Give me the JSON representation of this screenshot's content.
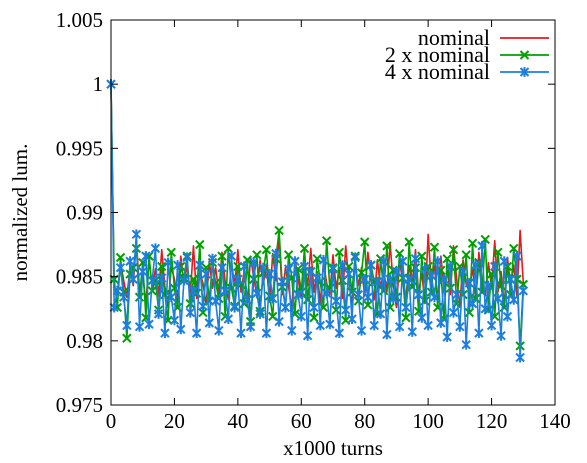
{
  "chart_data": {
    "type": "line",
    "title": "",
    "xlabel": "x1000 turns",
    "ylabel": "normalized lum.",
    "xlim": [
      0,
      140
    ],
    "ylim": [
      0.975,
      1.005
    ],
    "x_ticks": [
      "0",
      "20",
      "40",
      "60",
      "80",
      "100",
      "120",
      "140"
    ],
    "y_ticks": [
      "0.975",
      "0.98",
      "0.985",
      "0.99",
      "0.995",
      "1",
      "1.005"
    ],
    "x_tick_values": [
      0,
      20,
      40,
      60,
      80,
      100,
      120,
      140
    ],
    "y_tick_values": [
      0.975,
      0.98,
      0.985,
      0.99,
      0.995,
      1.0,
      1.005
    ],
    "grid": false,
    "legend_position": "top-right",
    "x": [
      0,
      1,
      2,
      3,
      4,
      5,
      6,
      7,
      8,
      9,
      10,
      11,
      12,
      13,
      14,
      15,
      16,
      17,
      18,
      19,
      20,
      21,
      22,
      23,
      24,
      25,
      26,
      27,
      28,
      29,
      30,
      31,
      32,
      33,
      34,
      35,
      36,
      37,
      38,
      39,
      40,
      41,
      42,
      43,
      44,
      45,
      46,
      47,
      48,
      49,
      50,
      51,
      52,
      53,
      54,
      55,
      56,
      57,
      58,
      59,
      60,
      61,
      62,
      63,
      64,
      65,
      66,
      67,
      68,
      69,
      70,
      71,
      72,
      73,
      74,
      75,
      76,
      77,
      78,
      79,
      80,
      81,
      82,
      83,
      84,
      85,
      86,
      87,
      88,
      89,
      90,
      91,
      92,
      93,
      94,
      95,
      96,
      97,
      98,
      99,
      100,
      101,
      102,
      103,
      104,
      105,
      106,
      107,
      108,
      109,
      110,
      111,
      112,
      113,
      114,
      115,
      116,
      117,
      118,
      119,
      120,
      121,
      122,
      123,
      124,
      125,
      126,
      127,
      128,
      129,
      130
    ],
    "series": [
      {
        "name": "nominal",
        "color": "#e41a1c",
        "marker": "none",
        "values": [
          1.0,
          0.9842,
          0.9836,
          0.9861,
          0.9847,
          0.9834,
          0.9857,
          0.9843,
          0.9878,
          0.9839,
          0.9852,
          0.9829,
          0.9864,
          0.9841,
          0.9856,
          0.9835,
          0.9871,
          0.9842,
          0.9826,
          0.9858,
          0.9848,
          0.9831,
          0.9866,
          0.9844,
          0.9859,
          0.9836,
          0.9874,
          0.9833,
          0.9853,
          0.9845,
          0.9828,
          0.9862,
          0.9841,
          0.9857,
          0.9837,
          0.9869,
          0.9846,
          0.9832,
          0.9861,
          0.9843,
          0.9871,
          0.9838,
          0.9855,
          0.9827,
          0.9866,
          0.9849,
          0.9835,
          0.9863,
          0.9844,
          0.9858,
          0.9831,
          0.9868,
          0.9847,
          0.9881,
          0.9836,
          0.9857,
          0.9842,
          0.9825,
          0.9864,
          0.9848,
          0.9834,
          0.9859,
          0.9843,
          0.9872,
          0.9838,
          0.9854,
          0.9829,
          0.9862,
          0.9845,
          0.9836,
          0.9867,
          0.9841,
          0.9856,
          0.9833,
          0.9874,
          0.9847,
          0.9828,
          0.9861,
          0.9843,
          0.9857,
          0.9835,
          0.9869,
          0.9849,
          0.9832,
          0.9863,
          0.9841,
          0.9855,
          0.9838,
          0.9876,
          0.9844,
          0.9826,
          0.9862,
          0.9846,
          0.9834,
          0.9859,
          0.9843,
          0.9871,
          0.9837,
          0.9853,
          0.9829,
          0.9883,
          0.9845,
          0.9858,
          0.9831,
          0.9866,
          0.9842,
          0.9855,
          0.9836,
          0.9874,
          0.9848,
          0.9827,
          0.9863,
          0.9844,
          0.9839,
          0.9857,
          0.9832,
          0.9869,
          0.9846,
          0.9835,
          0.9861,
          0.9842,
          0.9878,
          0.9838,
          0.9854,
          0.9828,
          0.9865,
          0.9843,
          0.9859,
          0.9834,
          0.9886,
          0.9845
        ]
      },
      {
        "name": "2 x nominal",
        "color": "#00a000",
        "marker": "x",
        "values": [
          1.0,
          0.9848,
          0.9826,
          0.9865,
          0.9838,
          0.9802,
          0.9852,
          0.9857,
          0.9872,
          0.9834,
          0.9861,
          0.9818,
          0.9866,
          0.9839,
          0.9847,
          0.9824,
          0.9858,
          0.9836,
          0.9816,
          0.9869,
          0.9841,
          0.9826,
          0.9858,
          0.9849,
          0.9866,
          0.9829,
          0.9848,
          0.9837,
          0.9875,
          0.9822,
          0.9857,
          0.9831,
          0.9861,
          0.9845,
          0.9833,
          0.9866,
          0.9819,
          0.9872,
          0.9841,
          0.9827,
          0.9858,
          0.9844,
          0.9829,
          0.9863,
          0.9815,
          0.9848,
          0.9867,
          0.9823,
          0.9853,
          0.9871,
          0.9835,
          0.9819,
          0.9864,
          0.9886,
          0.9842,
          0.9826,
          0.9867,
          0.9849,
          0.9821,
          0.9856,
          0.9838,
          0.9872,
          0.9832,
          0.9854,
          0.9818,
          0.9864,
          0.9846,
          0.9826,
          0.9878,
          0.9841,
          0.9857,
          0.9824,
          0.9869,
          0.9847,
          0.9816,
          0.9858,
          0.9838,
          0.9866,
          0.9831,
          0.9853,
          0.9877,
          0.9828,
          0.9859,
          0.9846,
          0.9821,
          0.9864,
          0.9839,
          0.9874,
          0.9826,
          0.9855,
          0.9834,
          0.9868,
          0.9849,
          0.9818,
          0.9877,
          0.9842,
          0.9857,
          0.9823,
          0.9866,
          0.9831,
          0.9858,
          0.9838,
          0.9873,
          0.9826,
          0.9855,
          0.9817,
          0.9864,
          0.9841,
          0.9871,
          0.9829,
          0.9858,
          0.9836,
          0.9867,
          0.9822,
          0.9876,
          0.9833,
          0.9861,
          0.9838,
          0.9879,
          0.9824,
          0.9852,
          0.9819,
          0.9869,
          0.9843,
          0.9826,
          0.9858,
          0.9836,
          0.9872,
          0.9848,
          0.9796,
          0.9844
        ]
      },
      {
        "name": "4 x nominal",
        "color": "#1c7fe0",
        "marker": "asterisk",
        "values": [
          1.0,
          0.9826,
          0.9839,
          0.9857,
          0.9834,
          0.9812,
          0.9862,
          0.9848,
          0.9883,
          0.9811,
          0.9854,
          0.9866,
          0.9813,
          0.9847,
          0.9872,
          0.9821,
          0.9849,
          0.9806,
          0.9861,
          0.9834,
          0.9816,
          0.9859,
          0.9809,
          0.9847,
          0.9865,
          0.9822,
          0.9839,
          0.9806,
          0.9859,
          0.9827,
          0.9852,
          0.9814,
          0.9864,
          0.9831,
          0.9808,
          0.9857,
          0.9839,
          0.9817,
          0.9866,
          0.9826,
          0.9848,
          0.9806,
          0.9858,
          0.9832,
          0.9811,
          0.9861,
          0.9837,
          0.9821,
          0.9857,
          0.9806,
          0.9852,
          0.9833,
          0.9868,
          0.9815,
          0.9846,
          0.9826,
          0.9856,
          0.9808,
          0.9862,
          0.9836,
          0.9819,
          0.9858,
          0.9804,
          0.9854,
          0.9826,
          0.9849,
          0.9812,
          0.9863,
          0.9837,
          0.9813,
          0.9856,
          0.9831,
          0.9806,
          0.9859,
          0.9824,
          0.9852,
          0.9817,
          0.9865,
          0.9836,
          0.9808,
          0.9848,
          0.9834,
          0.9859,
          0.9812,
          0.9846,
          0.9821,
          0.9862,
          0.9805,
          0.9848,
          0.9833,
          0.9854,
          0.9811,
          0.9862,
          0.9826,
          0.9848,
          0.9807,
          0.9864,
          0.9836,
          0.9818,
          0.9856,
          0.9812,
          0.9851,
          0.9834,
          0.9862,
          0.9814,
          0.9848,
          0.9803,
          0.9858,
          0.9822,
          0.9836,
          0.9811,
          0.9854,
          0.9797,
          0.9845,
          0.9829,
          0.9859,
          0.9806,
          0.9874,
          0.9825,
          0.9843,
          0.9812,
          0.9858,
          0.9833,
          0.9804,
          0.9862,
          0.9819,
          0.9848,
          0.9832,
          0.9866,
          0.9787,
          0.9839
        ]
      }
    ]
  }
}
